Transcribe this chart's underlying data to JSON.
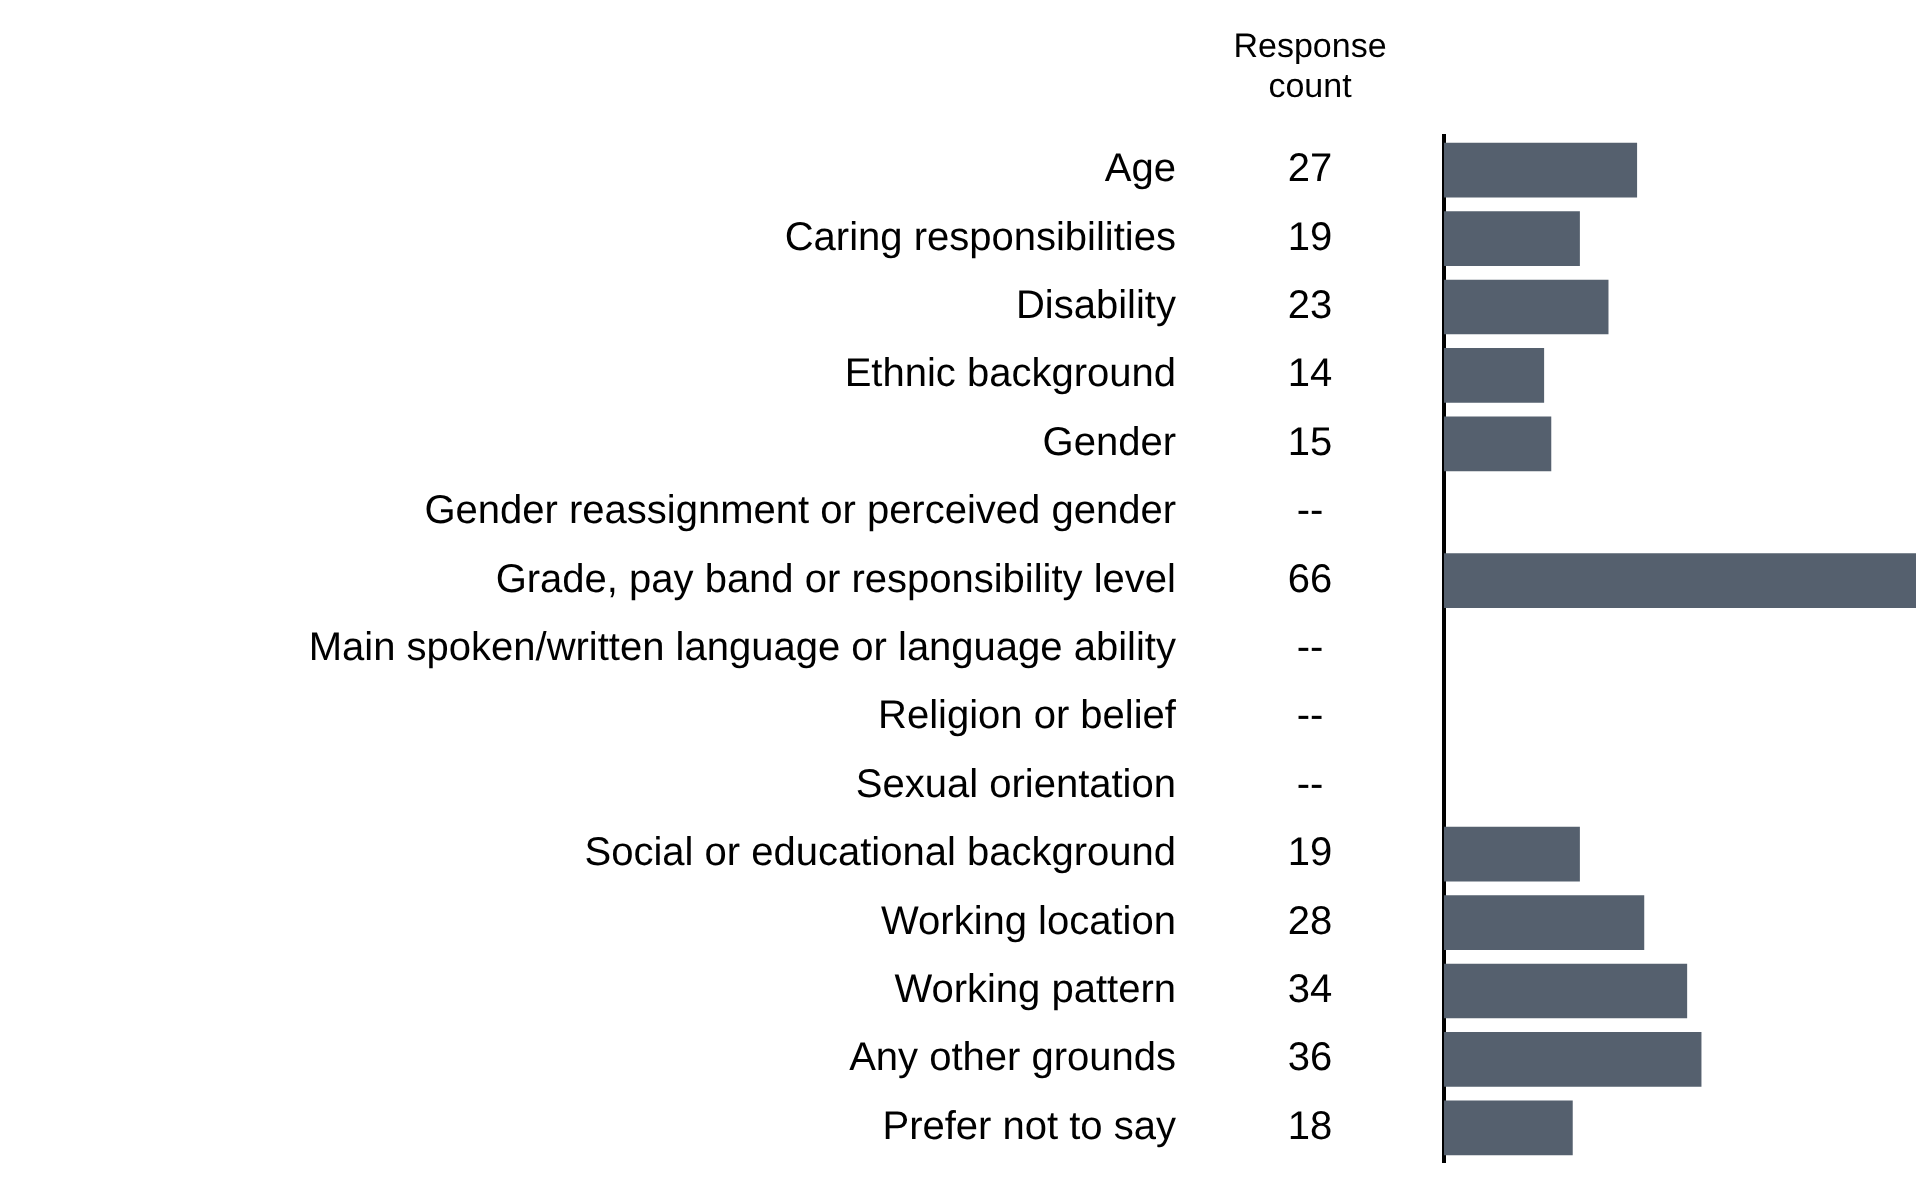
{
  "chart_data": {
    "type": "bar",
    "orientation": "horizontal",
    "annotations": [
      "Response count"
    ],
    "categories": [
      "Age",
      "Caring responsibilities",
      "Disability",
      "Ethnic background",
      "Gender",
      "Gender reassignment or perceived gender",
      "Grade, pay band or responsibility level",
      "Main spoken/written language or language ability",
      "Religion or belief",
      "Sexual orientation",
      "Social or educational background",
      "Working location",
      "Working pattern",
      "Any other grounds",
      "Prefer not to say"
    ],
    "values": [
      27,
      19,
      23,
      14,
      15,
      null,
      66,
      null,
      null,
      null,
      19,
      28,
      34,
      36,
      18
    ],
    "value_labels": [
      "27",
      "19",
      "23",
      "14",
      "15",
      "--",
      "66",
      "--",
      "--",
      "--",
      "19",
      "28",
      "34",
      "36",
      "18"
    ],
    "color": "#55606e",
    "xlim": [
      0,
      66
    ],
    "grid": false,
    "legend": false
  }
}
